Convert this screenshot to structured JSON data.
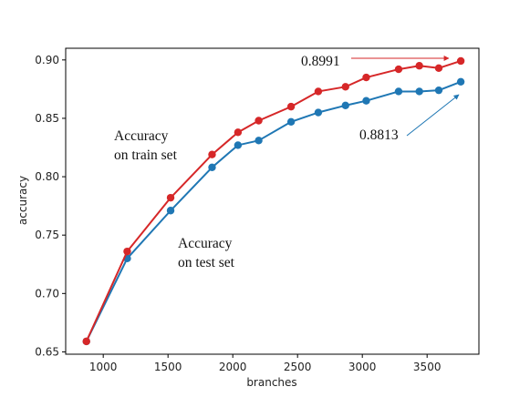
{
  "chart_data": {
    "type": "line",
    "xlabel": "branches",
    "ylabel": "accuracy",
    "xlim": [
      710,
      3900
    ],
    "ylim": [
      0.648,
      0.91
    ],
    "xticks": [
      {
        "value": 1000,
        "label": "1000"
      },
      {
        "value": 1500,
        "label": "1500"
      },
      {
        "value": 2000,
        "label": "2000"
      },
      {
        "value": 2500,
        "label": "2500"
      },
      {
        "value": 3000,
        "label": "3000"
      },
      {
        "value": 3500,
        "label": "3500"
      }
    ],
    "yticks": [
      {
        "value": 0.65,
        "label": "0.65"
      },
      {
        "value": 0.7,
        "label": "0.70"
      },
      {
        "value": 0.75,
        "label": "0.75"
      },
      {
        "value": 0.8,
        "label": "0.80"
      },
      {
        "value": 0.85,
        "label": "0.85"
      },
      {
        "value": 0.9,
        "label": "0.90"
      }
    ],
    "x": [
      870,
      1185,
      1520,
      1840,
      2040,
      2200,
      2450,
      2660,
      2870,
      3030,
      3280,
      3440,
      3590,
      3760
    ],
    "series": [
      {
        "color": "#d62728",
        "values": [
          0.659,
          0.736,
          0.782,
          0.819,
          0.838,
          0.848,
          0.86,
          0.873,
          0.877,
          0.885,
          0.892,
          0.895,
          0.893,
          0.8991
        ]
      },
      {
        "color": "#1f77b4",
        "values": [
          0.659,
          0.73,
          0.771,
          0.808,
          0.827,
          0.831,
          0.847,
          0.855,
          0.861,
          0.865,
          0.873,
          0.873,
          0.874,
          0.8813
        ]
      }
    ],
    "annotations": [
      {
        "id": "train",
        "lines": [
          "Accuracy",
          "on train set"
        ]
      },
      {
        "id": "test",
        "lines": [
          "Accuracy",
          "on test set"
        ]
      },
      {
        "id": "max_train",
        "text": "0.8991",
        "color": "#d62728"
      },
      {
        "id": "max_test",
        "text": "0.8813",
        "color": "#1f77b4"
      }
    ],
    "grid": false,
    "legend": "none"
  }
}
